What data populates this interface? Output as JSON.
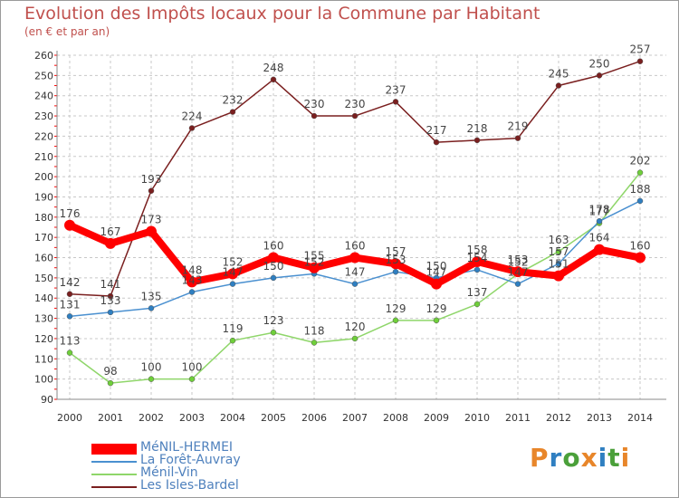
{
  "title": "Evolution des Impôts locaux pour la Commune par Habitant",
  "subtitle": "(en € et par an)",
  "logo": {
    "text": "Proxiti",
    "letter_colors": [
      "#e8862a",
      "#2f7fc1",
      "#4ba03a",
      "#e8862a",
      "#2f7fc1",
      "#4ba03a",
      "#e8862a"
    ]
  },
  "chart_data": {
    "type": "line",
    "title": "Evolution des Impôts locaux pour la Commune par Habitant",
    "subtitle": "(en € et par an)",
    "xlabel": "",
    "ylabel": "",
    "x": [
      "2000",
      "2001",
      "2002",
      "2003",
      "2004",
      "2005",
      "2006",
      "2007",
      "2008",
      "2009",
      "2010",
      "2011",
      "2012",
      "2013",
      "2014"
    ],
    "ylim": [
      90,
      260
    ],
    "yticks": [
      90,
      100,
      110,
      120,
      130,
      140,
      150,
      160,
      170,
      180,
      190,
      200,
      210,
      220,
      230,
      240,
      250,
      260
    ],
    "grid": true,
    "legend_position": "bottom-left",
    "series": [
      {
        "name": "MéNIL-HERMEI",
        "color": "#ff0000",
        "values": [
          176,
          167,
          173,
          148,
          152,
          160,
          155,
          160,
          157,
          147,
          158,
          153,
          151,
          164,
          160
        ]
      },
      {
        "name": "La Forêt-Auvray",
        "color": "#4a90d0",
        "values": [
          131,
          133,
          135,
          143,
          147,
          150,
          152,
          147,
          153,
          150,
          154,
          147,
          157,
          178,
          188
        ]
      },
      {
        "name": "Ménil-Vin",
        "color": "#8fd66a",
        "values": [
          113,
          98,
          100,
          100,
          119,
          123,
          118,
          120,
          129,
          129,
          137,
          152,
          163,
          177,
          202
        ]
      },
      {
        "name": "Les Isles-Bardel",
        "color": "#7a1f1f",
        "values": [
          142,
          141,
          193,
          224,
          232,
          248,
          230,
          230,
          237,
          217,
          218,
          219,
          245,
          250,
          257
        ]
      }
    ],
    "point_labels": [
      {
        "series": "MéNIL-HERMEI",
        "values": [
          "176",
          "167",
          "173",
          "148",
          "152",
          "160",
          "155",
          "160",
          "157",
          "147",
          "158",
          "153",
          "151",
          "164",
          "160"
        ]
      },
      {
        "series": "La Forêt-Auvray",
        "values": [
          "131",
          "133",
          "135",
          "143",
          "147",
          "150",
          "152",
          "147",
          "153",
          "150",
          "154",
          "147",
          "157",
          "178",
          "188"
        ]
      },
      {
        "series": "Ménil-Vin",
        "values": [
          "113",
          "98",
          "100",
          "100",
          "119",
          "123",
          "118",
          "120",
          "129",
          "129",
          "137",
          "152",
          "163",
          "177",
          "202"
        ]
      },
      {
        "series": "Les Isles-Bardel",
        "values": [
          "142",
          "141",
          "193",
          "224",
          "232",
          "248",
          "230",
          "230",
          "237",
          "217",
          "218",
          "219",
          "245",
          "250",
          "257"
        ]
      }
    ]
  }
}
